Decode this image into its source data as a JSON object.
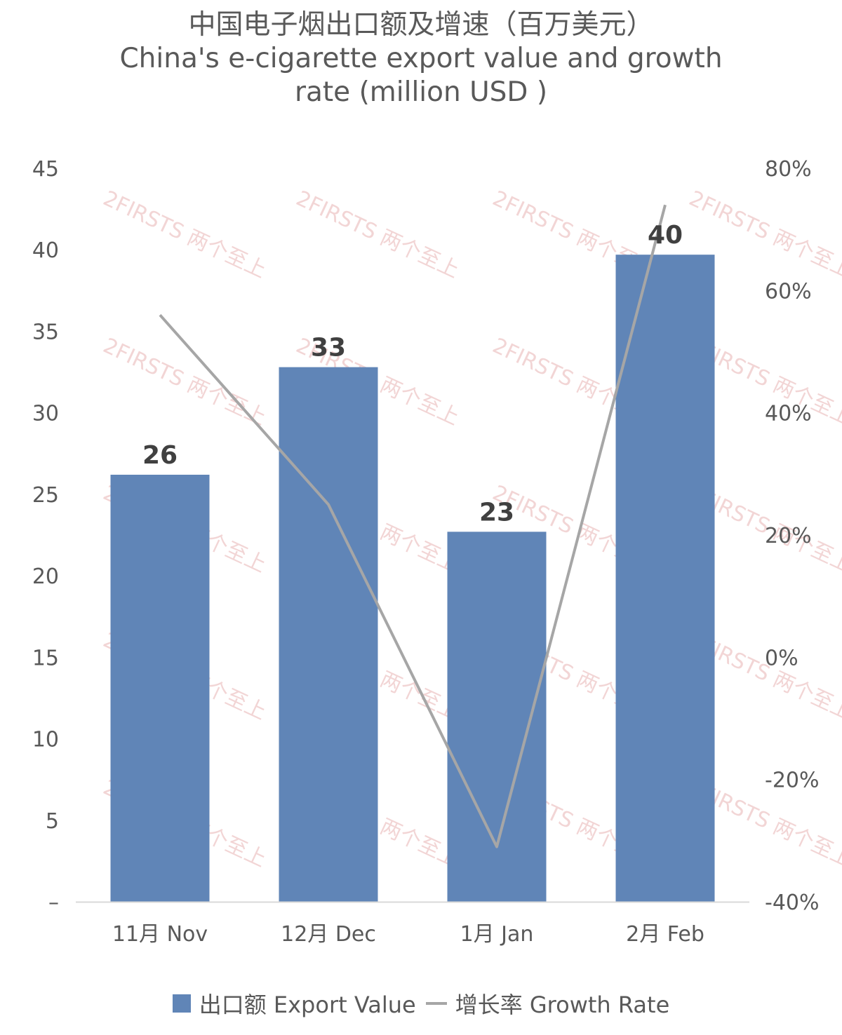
{
  "chart_data": {
    "type": "bar",
    "title_lines": [
      "中国电子烟出口额及增速（百万美元）",
      "China's e-cigarette export value and growth",
      "rate (million USD )"
    ],
    "categories": [
      "11月 Nov",
      "12月 Dec",
      "1月 Jan",
      "2月 Feb"
    ],
    "series": [
      {
        "name": "出口额 Export Value",
        "type": "bar",
        "axis": "left",
        "values": [
          26.2,
          32.8,
          22.7,
          39.7
        ],
        "data_labels": [
          "26",
          "33",
          "23",
          "40"
        ]
      },
      {
        "name": "增长率 Growth Rate",
        "type": "line",
        "axis": "right",
        "values": [
          56,
          25,
          -31,
          74
        ]
      }
    ],
    "y_left": {
      "ylim": [
        0,
        45
      ],
      "ticks": [
        "–",
        "5",
        "10",
        "15",
        "20",
        "25",
        "30",
        "35",
        "40",
        "45"
      ]
    },
    "y_right": {
      "ylim": [
        -40,
        80
      ],
      "ticks": [
        "-40%",
        "-20%",
        "0%",
        "20%",
        "40%",
        "60%",
        "80%"
      ]
    },
    "grid": false,
    "legend_position": "bottom",
    "watermark_text": "2FIRSTS 两个至上"
  },
  "colors": {
    "bar": "#6085b7",
    "line": "#a6a6a6",
    "axis": "#d9d9d9",
    "text": "#595959"
  }
}
